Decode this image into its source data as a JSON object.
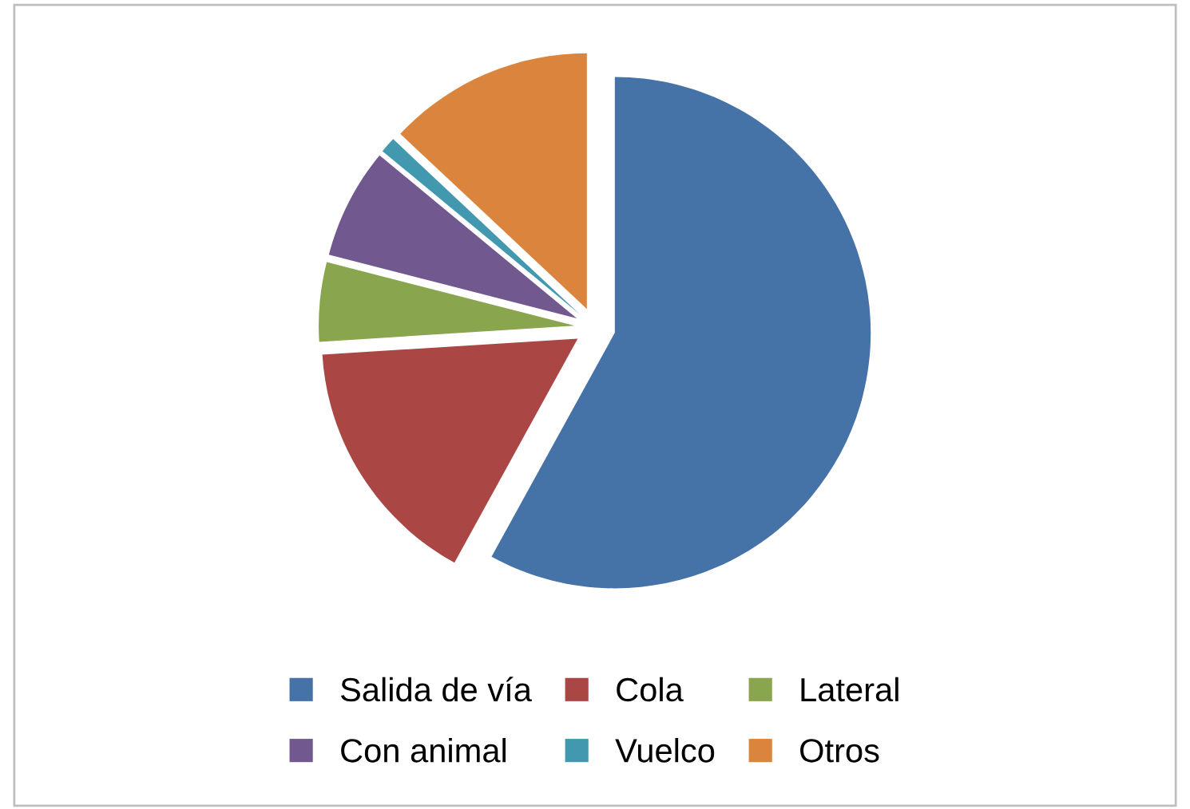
{
  "chart_data": {
    "type": "pie",
    "categories": [
      "Salida de vía",
      "Cola",
      "Lateral",
      "Con animal",
      "Vuelco",
      "Otros"
    ],
    "values": [
      58,
      16,
      5,
      7,
      1,
      13
    ],
    "colors": [
      "#4572a7",
      "#aa4643",
      "#89a54e",
      "#71588f",
      "#4198af",
      "#db843d"
    ],
    "legend": "bottom"
  }
}
